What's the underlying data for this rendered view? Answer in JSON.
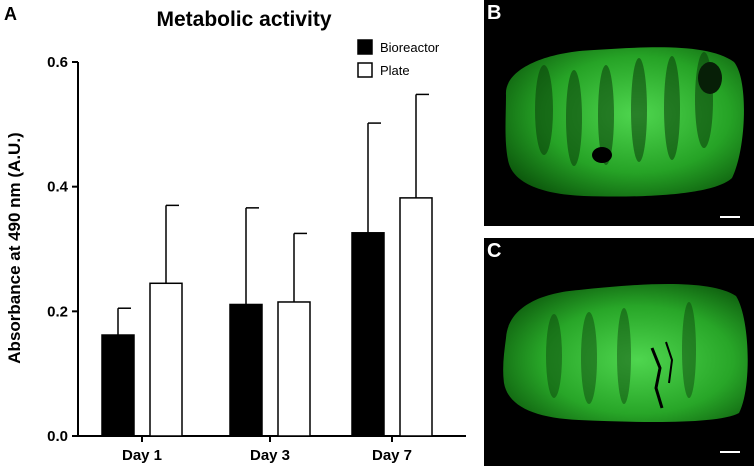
{
  "panels": {
    "a_label": "A",
    "b_label": "B",
    "c_label": "C"
  },
  "chart_data": {
    "type": "bar",
    "title": "Metabolic activity",
    "xlabel": "",
    "ylabel": "Absorbance at 490 nm (A.U.)",
    "categories": [
      "Day 1",
      "Day 3",
      "Day 7"
    ],
    "series": [
      {
        "name": "Bioreactor",
        "color": "#000000",
        "values": [
          0.162,
          0.211,
          0.326
        ],
        "error": [
          0.043,
          0.155,
          0.176
        ]
      },
      {
        "name": "Plate",
        "color": "#ffffff",
        "values": [
          0.245,
          0.215,
          0.382
        ],
        "error": [
          0.125,
          0.11,
          0.166
        ]
      }
    ],
    "ylim": [
      0,
      0.6
    ],
    "yticks": [
      "0.0",
      "0.2",
      "0.4",
      "0.6"
    ],
    "legend": "top-right",
    "grid": false
  },
  "images": [
    {
      "panel": "B",
      "description_color": "#2a8a2a",
      "scale_bar": true
    },
    {
      "panel": "C",
      "description_color": "#2a8a2a",
      "scale_bar": true
    }
  ]
}
